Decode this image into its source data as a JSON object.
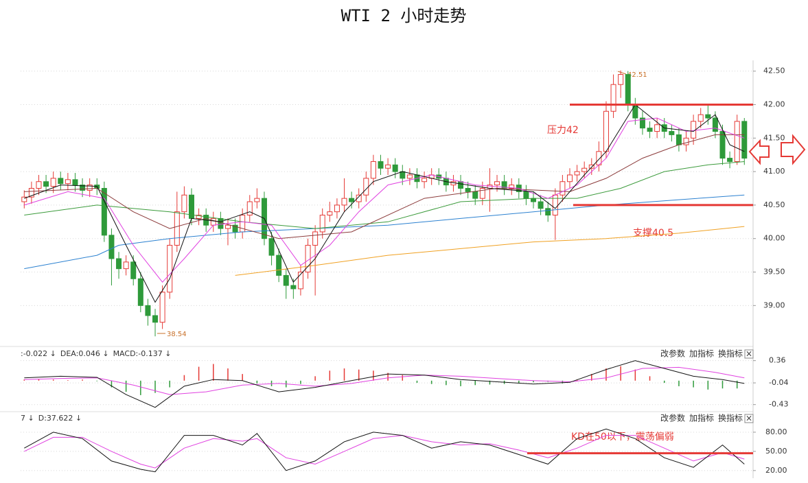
{
  "chart_data": [
    {
      "type": "candlestick",
      "title": "WTI 2 小时走势",
      "xlim": [
        -0.5,
        100.2
      ],
      "ylim": [
        38.44,
        42.64
      ],
      "yticks": [
        {
          "value": 42.5,
          "label": "42.50"
        },
        {
          "value": 42,
          "label": "42.00"
        },
        {
          "value": 41.5,
          "label": "41.50"
        },
        {
          "value": 41,
          "label": "41.00"
        },
        {
          "value": 40.5,
          "label": "40.50"
        },
        {
          "value": 40,
          "label": "40.00"
        },
        {
          "value": 39.5,
          "label": "39.50"
        },
        {
          "value": 39,
          "label": "39.00"
        }
      ],
      "grid": true,
      "up_color": "#e53935",
      "down_color": "#2e9a3a",
      "open": [
        40.55,
        40.62,
        40.75,
        40.85,
        40.78,
        40.9,
        40.82,
        40.88,
        40.8,
        40.72,
        40.8,
        40.75,
        40.05,
        39.7,
        39.55,
        39.65,
        39.4,
        39.0,
        38.85,
        38.75,
        39.2,
        39.9,
        40.4,
        40.65,
        40.3,
        40.35,
        40.2,
        40.3,
        40.15,
        40.2,
        40.1,
        40.35,
        40.55,
        40.6,
        40.0,
        39.75,
        39.45,
        39.3,
        39.25,
        39.5,
        39.9,
        40.1,
        40.35,
        40.4,
        40.5,
        40.6,
        40.55,
        40.65,
        40.9,
        41.15,
        41.05,
        41.1,
        41.0,
        40.9,
        40.95,
        40.85,
        40.9,
        40.95,
        40.9,
        40.8,
        40.85,
        40.75,
        40.7,
        40.6,
        40.75,
        40.8,
        40.85,
        40.75,
        40.8,
        40.7,
        40.6,
        40.55,
        40.45,
        40.35,
        40.65,
        40.85,
        40.95,
        41.0,
        41.05,
        41.1,
        41.3,
        41.9,
        42.3,
        42.45,
        42.0,
        41.8,
        41.65,
        41.6,
        41.7,
        41.6,
        41.55,
        41.4,
        41.5,
        41.75,
        41.85,
        41.8,
        41.6,
        41.2,
        41.15,
        41.75
      ],
      "high": [
        40.72,
        40.85,
        40.95,
        40.95,
        41.0,
        41.0,
        40.98,
        40.98,
        40.9,
        40.9,
        40.9,
        40.85,
        40.15,
        39.8,
        39.75,
        39.75,
        39.5,
        39.1,
        38.95,
        39.3,
        40.0,
        40.7,
        40.78,
        40.75,
        40.45,
        40.45,
        40.4,
        40.4,
        40.3,
        40.3,
        40.45,
        40.65,
        40.75,
        40.7,
        40.1,
        39.85,
        39.55,
        39.4,
        39.6,
        40.0,
        40.2,
        40.45,
        40.55,
        40.6,
        40.9,
        40.7,
        40.75,
        41.0,
        41.25,
        41.25,
        41.2,
        41.2,
        41.1,
        41.05,
        41.05,
        41.0,
        41.05,
        41.05,
        41.0,
        40.95,
        40.95,
        40.85,
        40.8,
        40.85,
        41.05,
        40.95,
        40.95,
        40.9,
        40.9,
        40.8,
        40.7,
        40.65,
        40.55,
        40.75,
        40.95,
        41.05,
        41.1,
        41.15,
        41.2,
        41.45,
        42.05,
        42.45,
        42.51,
        42.5,
        42.1,
        41.9,
        41.75,
        41.8,
        41.8,
        41.7,
        41.65,
        41.6,
        41.85,
        41.95,
        42.0,
        41.9,
        41.7,
        41.3,
        41.85,
        41.8
      ],
      "low": [
        40.45,
        40.52,
        40.65,
        40.68,
        40.68,
        40.72,
        40.72,
        40.7,
        40.62,
        40.62,
        40.65,
        39.95,
        39.3,
        39.4,
        39.45,
        39.3,
        38.9,
        38.7,
        38.54,
        38.65,
        39.1,
        39.8,
        40.3,
        40.2,
        40.2,
        40.1,
        40.1,
        40.05,
        39.9,
        40.0,
        40.0,
        40.25,
        40.45,
        39.9,
        39.6,
        39.35,
        39.1,
        39.1,
        39.15,
        39.4,
        39.15,
        40.0,
        40.25,
        40.3,
        40.4,
        40.45,
        40.45,
        40.55,
        40.8,
        40.95,
        40.95,
        40.9,
        40.8,
        40.8,
        40.75,
        40.75,
        40.8,
        40.8,
        40.7,
        40.7,
        40.65,
        40.6,
        40.5,
        40.5,
        40.4,
        40.7,
        40.65,
        40.65,
        40.6,
        40.5,
        40.45,
        40.35,
        40.25,
        39.98,
        40.55,
        40.75,
        40.85,
        40.9,
        40.95,
        41.0,
        41.2,
        41.8,
        42.1,
        41.9,
        41.7,
        41.55,
        41.5,
        41.5,
        41.5,
        41.45,
        41.3,
        41.3,
        41.4,
        41.65,
        41.7,
        41.5,
        41.1,
        41.05,
        41.1,
        41.1
      ],
      "close": [
        40.62,
        40.75,
        40.85,
        40.78,
        40.9,
        40.82,
        40.88,
        40.8,
        40.72,
        40.8,
        40.75,
        40.05,
        39.7,
        39.55,
        39.65,
        39.4,
        39.0,
        38.85,
        38.75,
        39.2,
        39.9,
        40.4,
        40.65,
        40.3,
        40.35,
        40.2,
        40.3,
        40.15,
        40.2,
        40.1,
        40.35,
        40.55,
        40.6,
        40.0,
        39.75,
        39.45,
        39.3,
        39.25,
        39.5,
        39.9,
        40.1,
        40.35,
        40.4,
        40.5,
        40.6,
        40.55,
        40.65,
        40.9,
        41.15,
        41.05,
        41.1,
        41.0,
        40.9,
        40.95,
        40.85,
        40.9,
        40.95,
        40.9,
        40.8,
        40.85,
        40.75,
        40.7,
        40.6,
        40.75,
        40.8,
        40.85,
        40.75,
        40.8,
        40.7,
        40.6,
        40.55,
        40.45,
        40.35,
        40.65,
        40.85,
        40.95,
        41.0,
        41.05,
        41.1,
        41.3,
        41.9,
        42.3,
        42.45,
        42.0,
        41.8,
        41.65,
        41.6,
        41.7,
        41.6,
        41.55,
        41.4,
        41.5,
        41.75,
        41.85,
        41.8,
        41.6,
        41.2,
        41.15,
        41.75,
        41.2
      ],
      "lines": [
        {
          "color": "#f0a020",
          "x": [
            29,
            40,
            50,
            60,
            70,
            80,
            90,
            99
          ],
          "values": [
            39.45,
            39.6,
            39.75,
            39.85,
            39.95,
            40.0,
            40.08,
            40.18
          ]
        },
        {
          "color": "#2a80d0",
          "x": [
            0,
            10,
            13,
            20,
            30,
            40,
            50,
            60,
            70,
            75,
            80,
            90,
            99
          ],
          "values": [
            39.55,
            39.75,
            39.9,
            40.0,
            40.1,
            40.15,
            40.2,
            40.3,
            40.4,
            40.45,
            40.5,
            40.58,
            40.65
          ]
        },
        {
          "color": "#3a9a3a",
          "x": [
            0,
            10,
            20,
            30,
            40,
            50,
            60,
            70,
            76,
            82,
            88,
            94,
            99
          ],
          "values": [
            40.35,
            40.5,
            40.4,
            40.25,
            40.15,
            40.25,
            40.55,
            40.6,
            40.6,
            40.75,
            41.0,
            41.1,
            41.15
          ]
        },
        {
          "color": "#8b3a3a",
          "x": [
            0,
            10,
            15,
            20,
            25,
            35,
            45,
            55,
            65,
            75,
            80,
            85,
            90,
            95,
            99
          ],
          "values": [
            40.7,
            40.75,
            40.4,
            40.15,
            40.3,
            40.0,
            40.1,
            40.6,
            40.75,
            40.7,
            40.9,
            41.2,
            41.4,
            41.55,
            41.55
          ]
        },
        {
          "color": "#e040e0",
          "x": [
            0,
            6,
            11,
            15,
            19,
            22,
            26,
            30,
            34,
            38,
            42,
            46,
            50,
            56,
            62,
            68,
            72,
            76,
            80,
            83,
            87,
            91,
            95,
            99
          ],
          "values": [
            40.5,
            40.7,
            40.6,
            39.9,
            39.35,
            39.7,
            40.2,
            40.25,
            40.2,
            39.6,
            39.9,
            40.4,
            40.8,
            40.95,
            40.8,
            40.75,
            40.6,
            40.8,
            41.2,
            41.75,
            41.8,
            41.6,
            41.65,
            41.5
          ]
        },
        {
          "color": "#111111",
          "x": [
            0,
            5,
            10,
            14,
            18,
            20,
            23,
            27,
            31,
            33,
            37,
            40,
            44,
            48,
            52,
            58,
            64,
            70,
            73,
            77,
            80,
            84,
            88,
            92,
            95,
            97,
            99
          ],
          "values": [
            40.6,
            40.8,
            40.78,
            39.9,
            39.05,
            39.4,
            40.3,
            40.25,
            40.4,
            40.3,
            39.35,
            39.7,
            40.4,
            40.85,
            41.0,
            40.85,
            40.75,
            40.7,
            40.45,
            40.95,
            41.3,
            42.0,
            41.65,
            41.6,
            41.85,
            41.4,
            41.3
          ]
        }
      ],
      "levels": [
        {
          "value": 42,
          "label": "压力42",
          "color": "#e53935"
        },
        {
          "value": 40.5,
          "label": "支撑40.5",
          "color": "#e53935"
        }
      ],
      "annotations": [
        {
          "text": "42.51"
        },
        {
          "text": "38.54"
        }
      ]
    },
    {
      "type": "macd",
      "legend": [
        {
          "text": ":-0.022 ↓",
          "color": "#222222"
        },
        {
          "text": "DEA:0.046 ↓",
          "color": "#d020d0"
        },
        {
          "text": "MACD:-0.137 ↓",
          "color": "#666666"
        }
      ],
      "buttons": [
        "改参数",
        "加指标",
        "换指标",
        "×"
      ],
      "xlim": [
        -0.5,
        100.2
      ],
      "ylim": [
        -0.52,
        0.59
      ],
      "yticks": [
        0.36,
        -0.04,
        -0.43
      ],
      "grid": true,
      "up_color": "#e53935",
      "down_color": "#2e9a3a",
      "x": [
        0,
        2,
        4,
        6,
        8,
        10,
        12,
        14,
        16,
        18,
        20,
        22,
        24,
        26,
        28,
        30,
        32,
        34,
        36,
        38,
        40,
        42,
        44,
        46,
        48,
        50,
        52,
        54,
        56,
        58,
        60,
        62,
        64,
        66,
        68,
        70,
        72,
        74,
        76,
        78,
        80,
        82,
        84,
        86,
        88,
        90,
        92,
        94,
        96,
        98
      ],
      "values": [
        0.02,
        0.03,
        0.02,
        0.01,
        0.02,
        -0.01,
        -0.12,
        -0.2,
        -0.26,
        -0.22,
        -0.12,
        0.1,
        0.25,
        0.3,
        0.22,
        0.12,
        -0.05,
        -0.1,
        -0.12,
        -0.06,
        0.08,
        0.18,
        0.22,
        0.2,
        0.18,
        0.14,
        0.1,
        -0.04,
        -0.06,
        -0.08,
        -0.1,
        -0.08,
        -0.07,
        -0.06,
        -0.05,
        -0.03,
        -0.02,
        -0.05,
        0.02,
        0.12,
        0.22,
        0.26,
        0.2,
        0.08,
        -0.04,
        -0.1,
        -0.12,
        -0.16,
        -0.14,
        -0.14
      ],
      "lines": [
        {
          "color": "#e040e0",
          "x": [
            0,
            5,
            10,
            15,
            20,
            25,
            30,
            35,
            40,
            45,
            50,
            55,
            60,
            65,
            70,
            75,
            80,
            85,
            90,
            95,
            99
          ],
          "values": [
            0.02,
            0.04,
            0.05,
            -0.08,
            -0.25,
            -0.2,
            -0.08,
            -0.05,
            -0.1,
            -0.05,
            0.05,
            0.1,
            0.08,
            0.04,
            0.0,
            -0.02,
            0.05,
            0.22,
            0.24,
            0.15,
            0.05
          ]
        },
        {
          "color": "#111111",
          "x": [
            0,
            5,
            10,
            14,
            18,
            22,
            26,
            30,
            35,
            40,
            45,
            50,
            55,
            60,
            65,
            70,
            75,
            80,
            84,
            88,
            92,
            96,
            99
          ],
          "values": [
            0.05,
            0.08,
            0.06,
            -0.25,
            -0.48,
            -0.1,
            0.02,
            0.0,
            -0.2,
            -0.12,
            0.0,
            0.12,
            0.1,
            0.02,
            -0.02,
            -0.06,
            -0.03,
            0.2,
            0.36,
            0.22,
            0.08,
            0.02,
            -0.05
          ]
        }
      ]
    },
    {
      "type": "kd",
      "legend": [
        {
          "text": "7 ↓",
          "color": "#222222"
        },
        {
          "text": "D:37.622 ↓",
          "color": "#d020d0"
        }
      ],
      "buttons": [
        "改参数",
        "加指标",
        "换指标",
        "×"
      ],
      "xlim": [
        -0.5,
        100.2
      ],
      "ylim": [
        8,
        110
      ],
      "yticks": [
        {
          "value": 80,
          "label": "80.00"
        },
        {
          "value": 50,
          "label": "50.00"
        },
        {
          "value": 20,
          "label": "20.00"
        }
      ],
      "grid": true,
      "lines": [
        {
          "color": "#e040e0",
          "x": [
            0,
            4,
            8,
            12,
            16,
            18,
            22,
            26,
            30,
            32,
            36,
            40,
            44,
            48,
            52,
            56,
            60,
            64,
            68,
            72,
            76,
            80,
            84,
            88,
            92,
            96,
            99
          ],
          "values": [
            50,
            72,
            72,
            50,
            30,
            24,
            55,
            70,
            66,
            70,
            40,
            30,
            50,
            70,
            75,
            65,
            60,
            62,
            52,
            40,
            55,
            75,
            75,
            55,
            35,
            48,
            38
          ]
        },
        {
          "color": "#111111",
          "x": [
            0,
            4,
            8,
            12,
            16,
            18,
            22,
            26,
            30,
            32,
            36,
            40,
            44,
            48,
            52,
            56,
            60,
            64,
            68,
            72,
            76,
            80,
            84,
            88,
            92,
            96,
            99
          ],
          "values": [
            55,
            80,
            70,
            35,
            22,
            18,
            75,
            75,
            60,
            78,
            20,
            35,
            65,
            80,
            75,
            55,
            65,
            60,
            45,
            30,
            70,
            85,
            70,
            40,
            25,
            60,
            30
          ]
        }
      ],
      "levels": [
        {
          "value": 47,
          "label": "KD在50以下，震荡偏弱",
          "color": "#e53935"
        }
      ]
    }
  ]
}
